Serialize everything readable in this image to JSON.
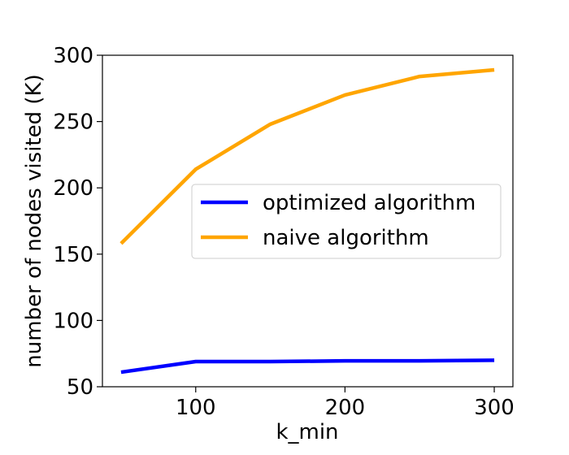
{
  "chart_data": {
    "type": "line",
    "title": "",
    "xlabel": "k_min",
    "ylabel": "number of nodes visited (K)",
    "x": [
      50,
      100,
      150,
      200,
      250,
      300
    ],
    "xlim": [
      37.5,
      312.5
    ],
    "ylim": [
      50,
      300
    ],
    "xticks": [
      100,
      200,
      300
    ],
    "yticks": [
      50,
      100,
      150,
      200,
      250,
      300
    ],
    "grid": false,
    "legend_position": "center-right",
    "series": [
      {
        "name": "optimized algorithm",
        "color": "#0000ff",
        "values": [
          61,
          69,
          69,
          69.5,
          69.5,
          70
        ]
      },
      {
        "name": "naive algorithm",
        "color": "#ffa500",
        "values": [
          158,
          214,
          248,
          270,
          284,
          289
        ]
      }
    ]
  }
}
